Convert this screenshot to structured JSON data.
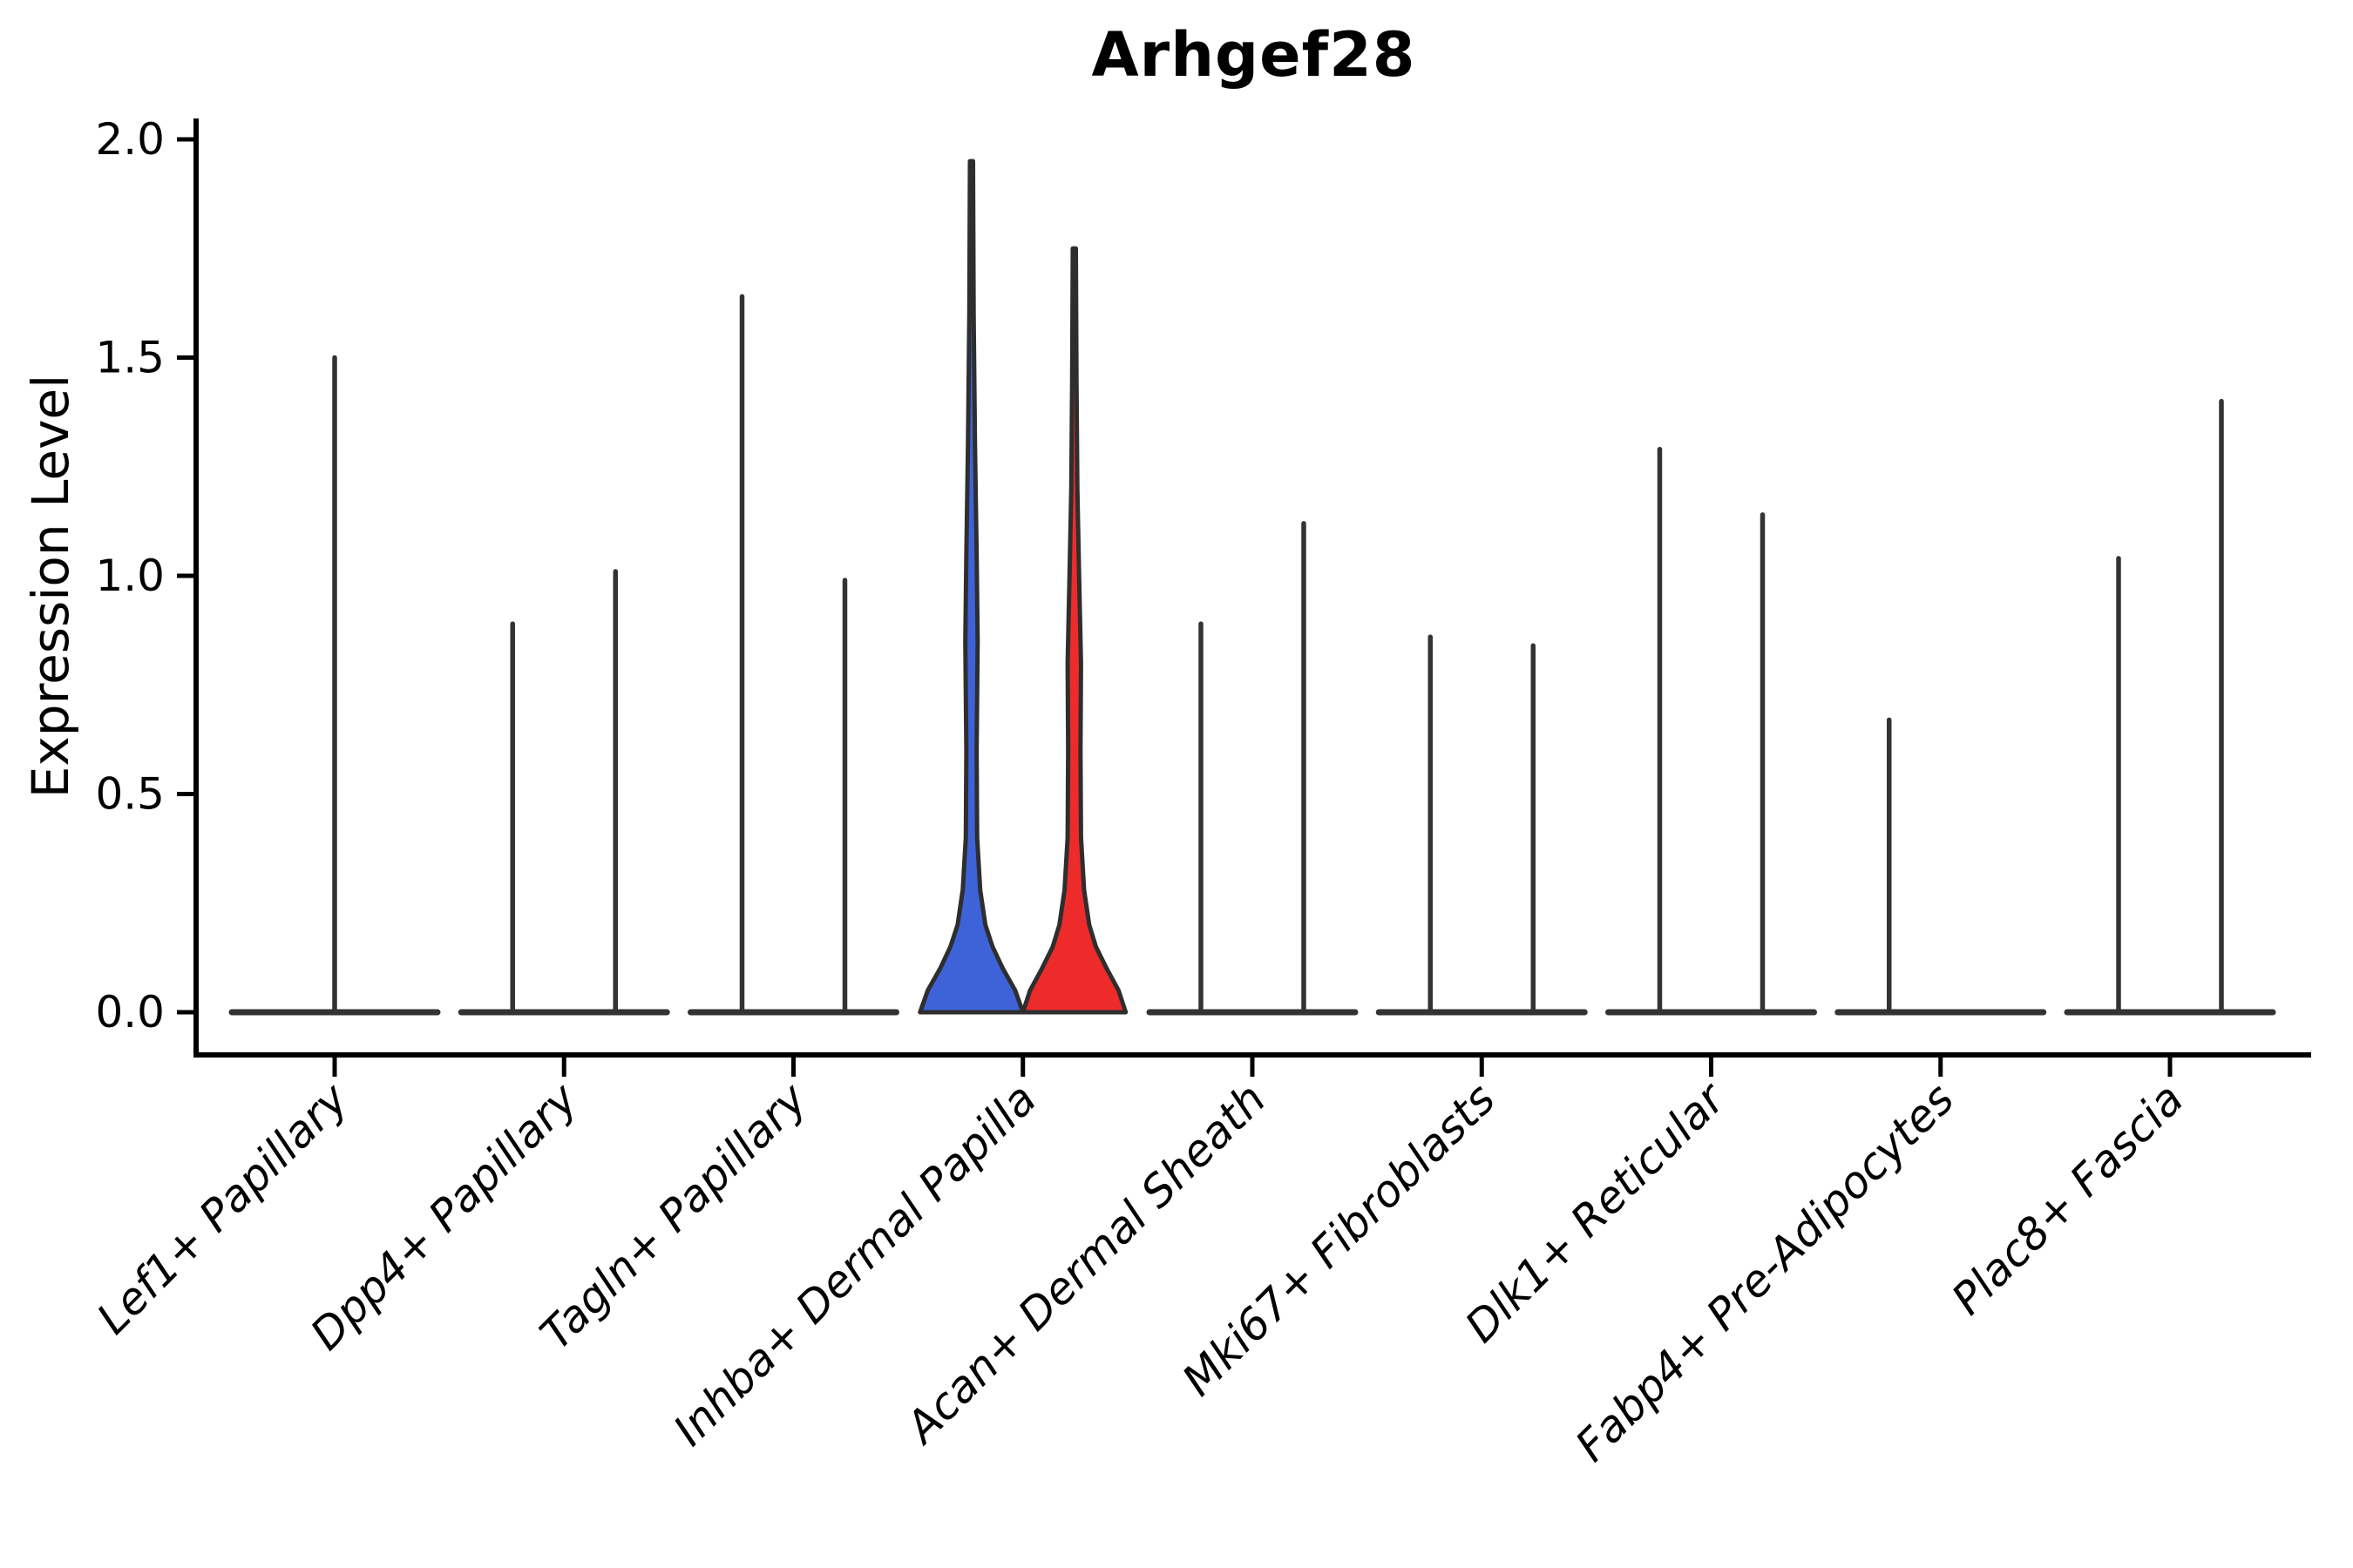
{
  "page": {
    "background": "#ffffff"
  },
  "chart_data": {
    "type": "violin",
    "title": "Arhgef28",
    "ylabel": "Expression Level",
    "xlabel": "",
    "ylim": [
      -0.0975,
      2.0475
    ],
    "grid": false,
    "legend": "none",
    "yticks": [
      {
        "value": 0.0,
        "label": "0.0"
      },
      {
        "value": 0.5,
        "label": "0.5"
      },
      {
        "value": 1.0,
        "label": "1.0"
      },
      {
        "value": 1.5,
        "label": "1.5"
      },
      {
        "value": 2.0,
        "label": "2.0"
      }
    ],
    "colors": {
      "blue_fill": "#3E63D8",
      "red_fill": "#EE2B2B",
      "violin_outline": "#2E2E2E",
      "collapsed_line": "#333333",
      "axis": "#000000"
    },
    "categories": [
      {
        "label": "Lef1+ Papillary",
        "violins": [
          {
            "position": "center",
            "full_width": true,
            "max": 1.5,
            "fill": null
          }
        ]
      },
      {
        "label": "Dpp4+ Papillary",
        "violins": [
          {
            "position": "left",
            "max": 0.89,
            "fill": null
          },
          {
            "position": "right",
            "max": 1.01,
            "fill": null
          }
        ]
      },
      {
        "label": "Tagln+ Papillary",
        "violins": [
          {
            "position": "left",
            "max": 1.64,
            "fill": null
          },
          {
            "position": "right",
            "max": 0.99,
            "fill": null
          }
        ]
      },
      {
        "label": "Inhba+ Dermal Papilla",
        "violins": [
          {
            "position": "left",
            "max": 1.95,
            "fill": "blue_fill",
            "profile": [
              [
                0,
                1.0
              ],
              [
                0.05,
                0.85
              ],
              [
                0.1,
                0.61
              ],
              [
                0.15,
                0.41
              ],
              [
                0.2,
                0.27
              ],
              [
                0.28,
                0.17
              ],
              [
                0.4,
                0.11
              ],
              [
                0.6,
                0.1
              ],
              [
                0.85,
                0.12
              ],
              [
                1.05,
                0.1
              ],
              [
                1.3,
                0.068
              ],
              [
                1.6,
                0.042
              ],
              [
                1.95,
                0.03
              ]
            ]
          },
          {
            "position": "right",
            "max": 1.75,
            "fill": "red_fill",
            "profile": [
              [
                0,
                1.0
              ],
              [
                0.05,
                0.86
              ],
              [
                0.1,
                0.63
              ],
              [
                0.15,
                0.42
              ],
              [
                0.2,
                0.29
              ],
              [
                0.28,
                0.19
              ],
              [
                0.4,
                0.13
              ],
              [
                0.6,
                0.12
              ],
              [
                0.8,
                0.13
              ],
              [
                1.0,
                0.093
              ],
              [
                1.2,
                0.059
              ],
              [
                1.45,
                0.042
              ],
              [
                1.75,
                0.03
              ]
            ]
          }
        ]
      },
      {
        "label": "Acan+ Dermal Sheath",
        "violins": [
          {
            "position": "left",
            "max": 0.89,
            "fill": null
          },
          {
            "position": "right",
            "max": 1.12,
            "fill": null
          }
        ]
      },
      {
        "label": "Mki67+ Fibroblasts",
        "violins": [
          {
            "position": "left",
            "max": 0.86,
            "fill": null
          },
          {
            "position": "right",
            "max": 0.84,
            "fill": null
          }
        ]
      },
      {
        "label": "Dlk1+ Reticular",
        "violins": [
          {
            "position": "left",
            "max": 1.29,
            "fill": null
          },
          {
            "position": "right",
            "max": 1.14,
            "fill": null
          }
        ]
      },
      {
        "label": "Fabp4+ Pre-Adipocytes",
        "violins": [
          {
            "position": "left",
            "max": 0.67,
            "fill": null
          },
          {
            "position": "right",
            "max": 0.0,
            "fill": null
          }
        ]
      },
      {
        "label": "Plac8+ Fascia",
        "violins": [
          {
            "position": "left",
            "max": 1.04,
            "fill": null
          },
          {
            "position": "right",
            "max": 1.4,
            "fill": null
          }
        ]
      }
    ]
  }
}
